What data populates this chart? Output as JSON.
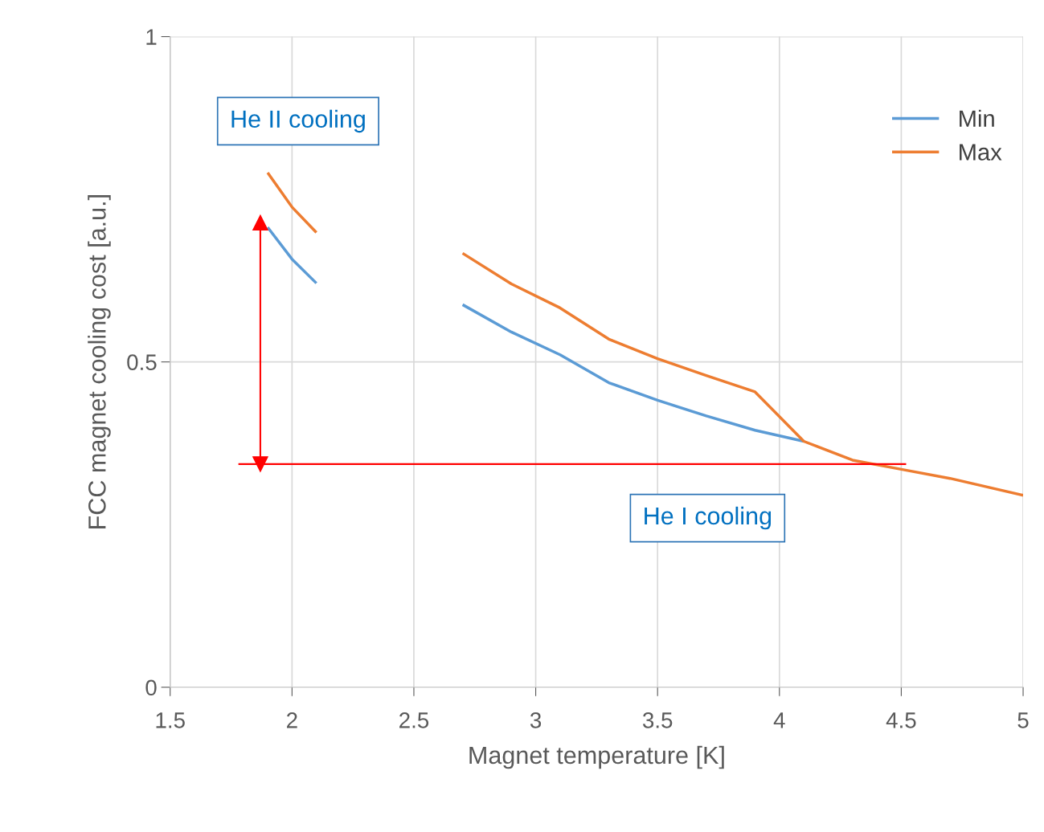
{
  "chart_data": {
    "type": "line",
    "xlabel": "Magnet temperature [K]",
    "ylabel": "FCC magnet cooling cost [a.u.]",
    "xlim": [
      1.5,
      5
    ],
    "xticks": [
      1.5,
      2,
      2.5,
      3,
      3.5,
      4,
      4.5,
      5
    ],
    "ylim": [
      0,
      1
    ],
    "yticks": [
      0,
      0.5,
      1
    ],
    "grid": true,
    "legend": "top right",
    "series": [
      {
        "name": "Min",
        "color": "#5b9bd5",
        "x": [
          1.9,
          2.0,
          2.1,
          2.4,
          2.7,
          2.9,
          3.1,
          3.3,
          3.5,
          3.7,
          3.9,
          4.1
        ],
        "values": [
          0.707,
          0.658,
          0.621,
          null,
          0.588,
          0.546,
          0.511,
          0.468,
          0.441,
          0.417,
          0.395,
          0.378
        ]
      },
      {
        "name": "Max",
        "color": "#ed7d31",
        "x": [
          1.9,
          2.0,
          2.1,
          2.4,
          2.7,
          2.9,
          3.1,
          3.3,
          3.5,
          3.7,
          3.9,
          4.1,
          4.3,
          4.5,
          4.7,
          5.0
        ],
        "values": [
          0.791,
          0.738,
          0.699,
          null,
          0.667,
          0.62,
          0.583,
          0.535,
          0.505,
          0.479,
          0.454,
          0.378,
          0.349,
          0.335,
          0.321,
          0.295
        ]
      },
      {
        "color": "#ff0000",
        "x": [
          1.78,
          4.52
        ],
        "values": [
          0.343,
          0.343
        ]
      },
      {
        "color": "#ff0000",
        "x": [
          1.87,
          1.87
        ],
        "values": [
          0.343,
          0.714
        ],
        "marker": "triangle"
      }
    ],
    "annotations": [
      "He II cooling",
      "He I cooling"
    ]
  }
}
